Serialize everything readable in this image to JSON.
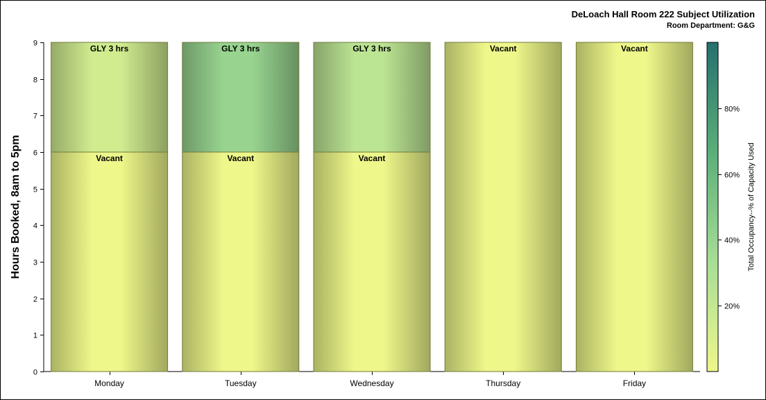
{
  "chart_data": {
    "type": "bar",
    "stacked": true,
    "title": "DeLoach Hall Room 222 Subject Utilization",
    "subtitle": "Room Department: G&G",
    "ylabel": "Hours Booked, 8am to 5pm",
    "xlabel": "",
    "ylim": [
      0,
      9
    ],
    "yticks": [
      0,
      1,
      2,
      3,
      4,
      5,
      6,
      7,
      8,
      9
    ],
    "categories": [
      "Monday",
      "Tuesday",
      "Wednesday",
      "Thursday",
      "Friday"
    ],
    "series": [
      {
        "name": "Vacant",
        "values": [
          6,
          6,
          6,
          9,
          9
        ],
        "occupancy_pct": [
          0,
          0,
          0,
          0,
          0
        ],
        "labels": [
          "Vacant",
          "Vacant",
          "Vacant",
          "Vacant",
          "Vacant"
        ]
      },
      {
        "name": "GLY",
        "values": [
          3,
          3,
          3,
          0,
          0
        ],
        "occupancy_pct": [
          14,
          40,
          24,
          0,
          0
        ],
        "labels": [
          "GLY 3 hrs",
          "GLY 3 hrs",
          "GLY 3 hrs",
          "",
          ""
        ]
      }
    ],
    "colorbar": {
      "label": "Total Occupancy--% of Capacity Used",
      "range": [
        0,
        100
      ],
      "ticks": [
        20,
        40,
        60,
        80
      ],
      "tick_labels": [
        "20%",
        "40%",
        "60%",
        "80%"
      ],
      "colors": [
        "#eef78a",
        "#a7dd96",
        "#5aaf78",
        "#26706f"
      ]
    },
    "grid": false,
    "legend": "none"
  }
}
